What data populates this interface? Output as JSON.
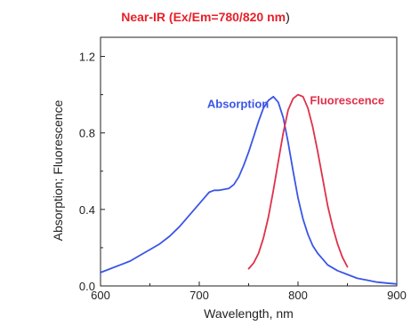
{
  "title": {
    "text": "Near-IR (Ex/Em=780/820 nm",
    "closing": ")"
  },
  "colors": {
    "title": "#e8202a",
    "absorption": "#3a55e6",
    "fluorescence": "#e0304a",
    "axis": "#222222"
  },
  "chart_data": {
    "type": "line",
    "title": "Near-IR (Ex/Em=780/820 nm)",
    "xlabel": "Wavelength, nm",
    "ylabel": "Absorption; Fluorescence",
    "xlim": [
      600,
      900
    ],
    "ylim": [
      0.0,
      1.3
    ],
    "xticks": [
      "600",
      "700",
      "800",
      "900"
    ],
    "yticks": [
      "0.0",
      "0.4",
      "0.8",
      "1.2"
    ],
    "grid": false,
    "legend": "inline labels",
    "series": [
      {
        "name": "Absorption",
        "color": "#3a55e6",
        "x": [
          600,
          610,
          620,
          630,
          640,
          650,
          660,
          670,
          680,
          690,
          700,
          705,
          710,
          715,
          720,
          725,
          730,
          735,
          740,
          745,
          750,
          755,
          760,
          765,
          770,
          775,
          780,
          785,
          790,
          795,
          800,
          805,
          810,
          815,
          820,
          825,
          830,
          840,
          850,
          860,
          870,
          880,
          890,
          900
        ],
        "y": [
          0.07,
          0.09,
          0.11,
          0.13,
          0.16,
          0.19,
          0.22,
          0.26,
          0.31,
          0.37,
          0.43,
          0.46,
          0.49,
          0.5,
          0.5,
          0.505,
          0.51,
          0.53,
          0.57,
          0.63,
          0.7,
          0.78,
          0.86,
          0.93,
          0.97,
          0.99,
          0.96,
          0.88,
          0.75,
          0.6,
          0.46,
          0.35,
          0.27,
          0.21,
          0.17,
          0.14,
          0.11,
          0.08,
          0.06,
          0.04,
          0.03,
          0.02,
          0.015,
          0.01
        ]
      },
      {
        "name": "Fluorescence",
        "color": "#e0304a",
        "x": [
          750,
          755,
          760,
          765,
          770,
          775,
          780,
          785,
          790,
          795,
          800,
          805,
          810,
          815,
          820,
          825,
          830,
          835,
          840,
          845,
          850
        ],
        "y": [
          0.09,
          0.12,
          0.17,
          0.25,
          0.36,
          0.5,
          0.65,
          0.8,
          0.92,
          0.98,
          1.0,
          0.99,
          0.93,
          0.83,
          0.7,
          0.56,
          0.42,
          0.31,
          0.22,
          0.15,
          0.1
        ]
      }
    ],
    "annotations": [
      {
        "text": "Absorption",
        "x": 708,
        "y": 0.93
      },
      {
        "text": "Fluorescence",
        "x": 812,
        "y": 0.95
      }
    ]
  }
}
